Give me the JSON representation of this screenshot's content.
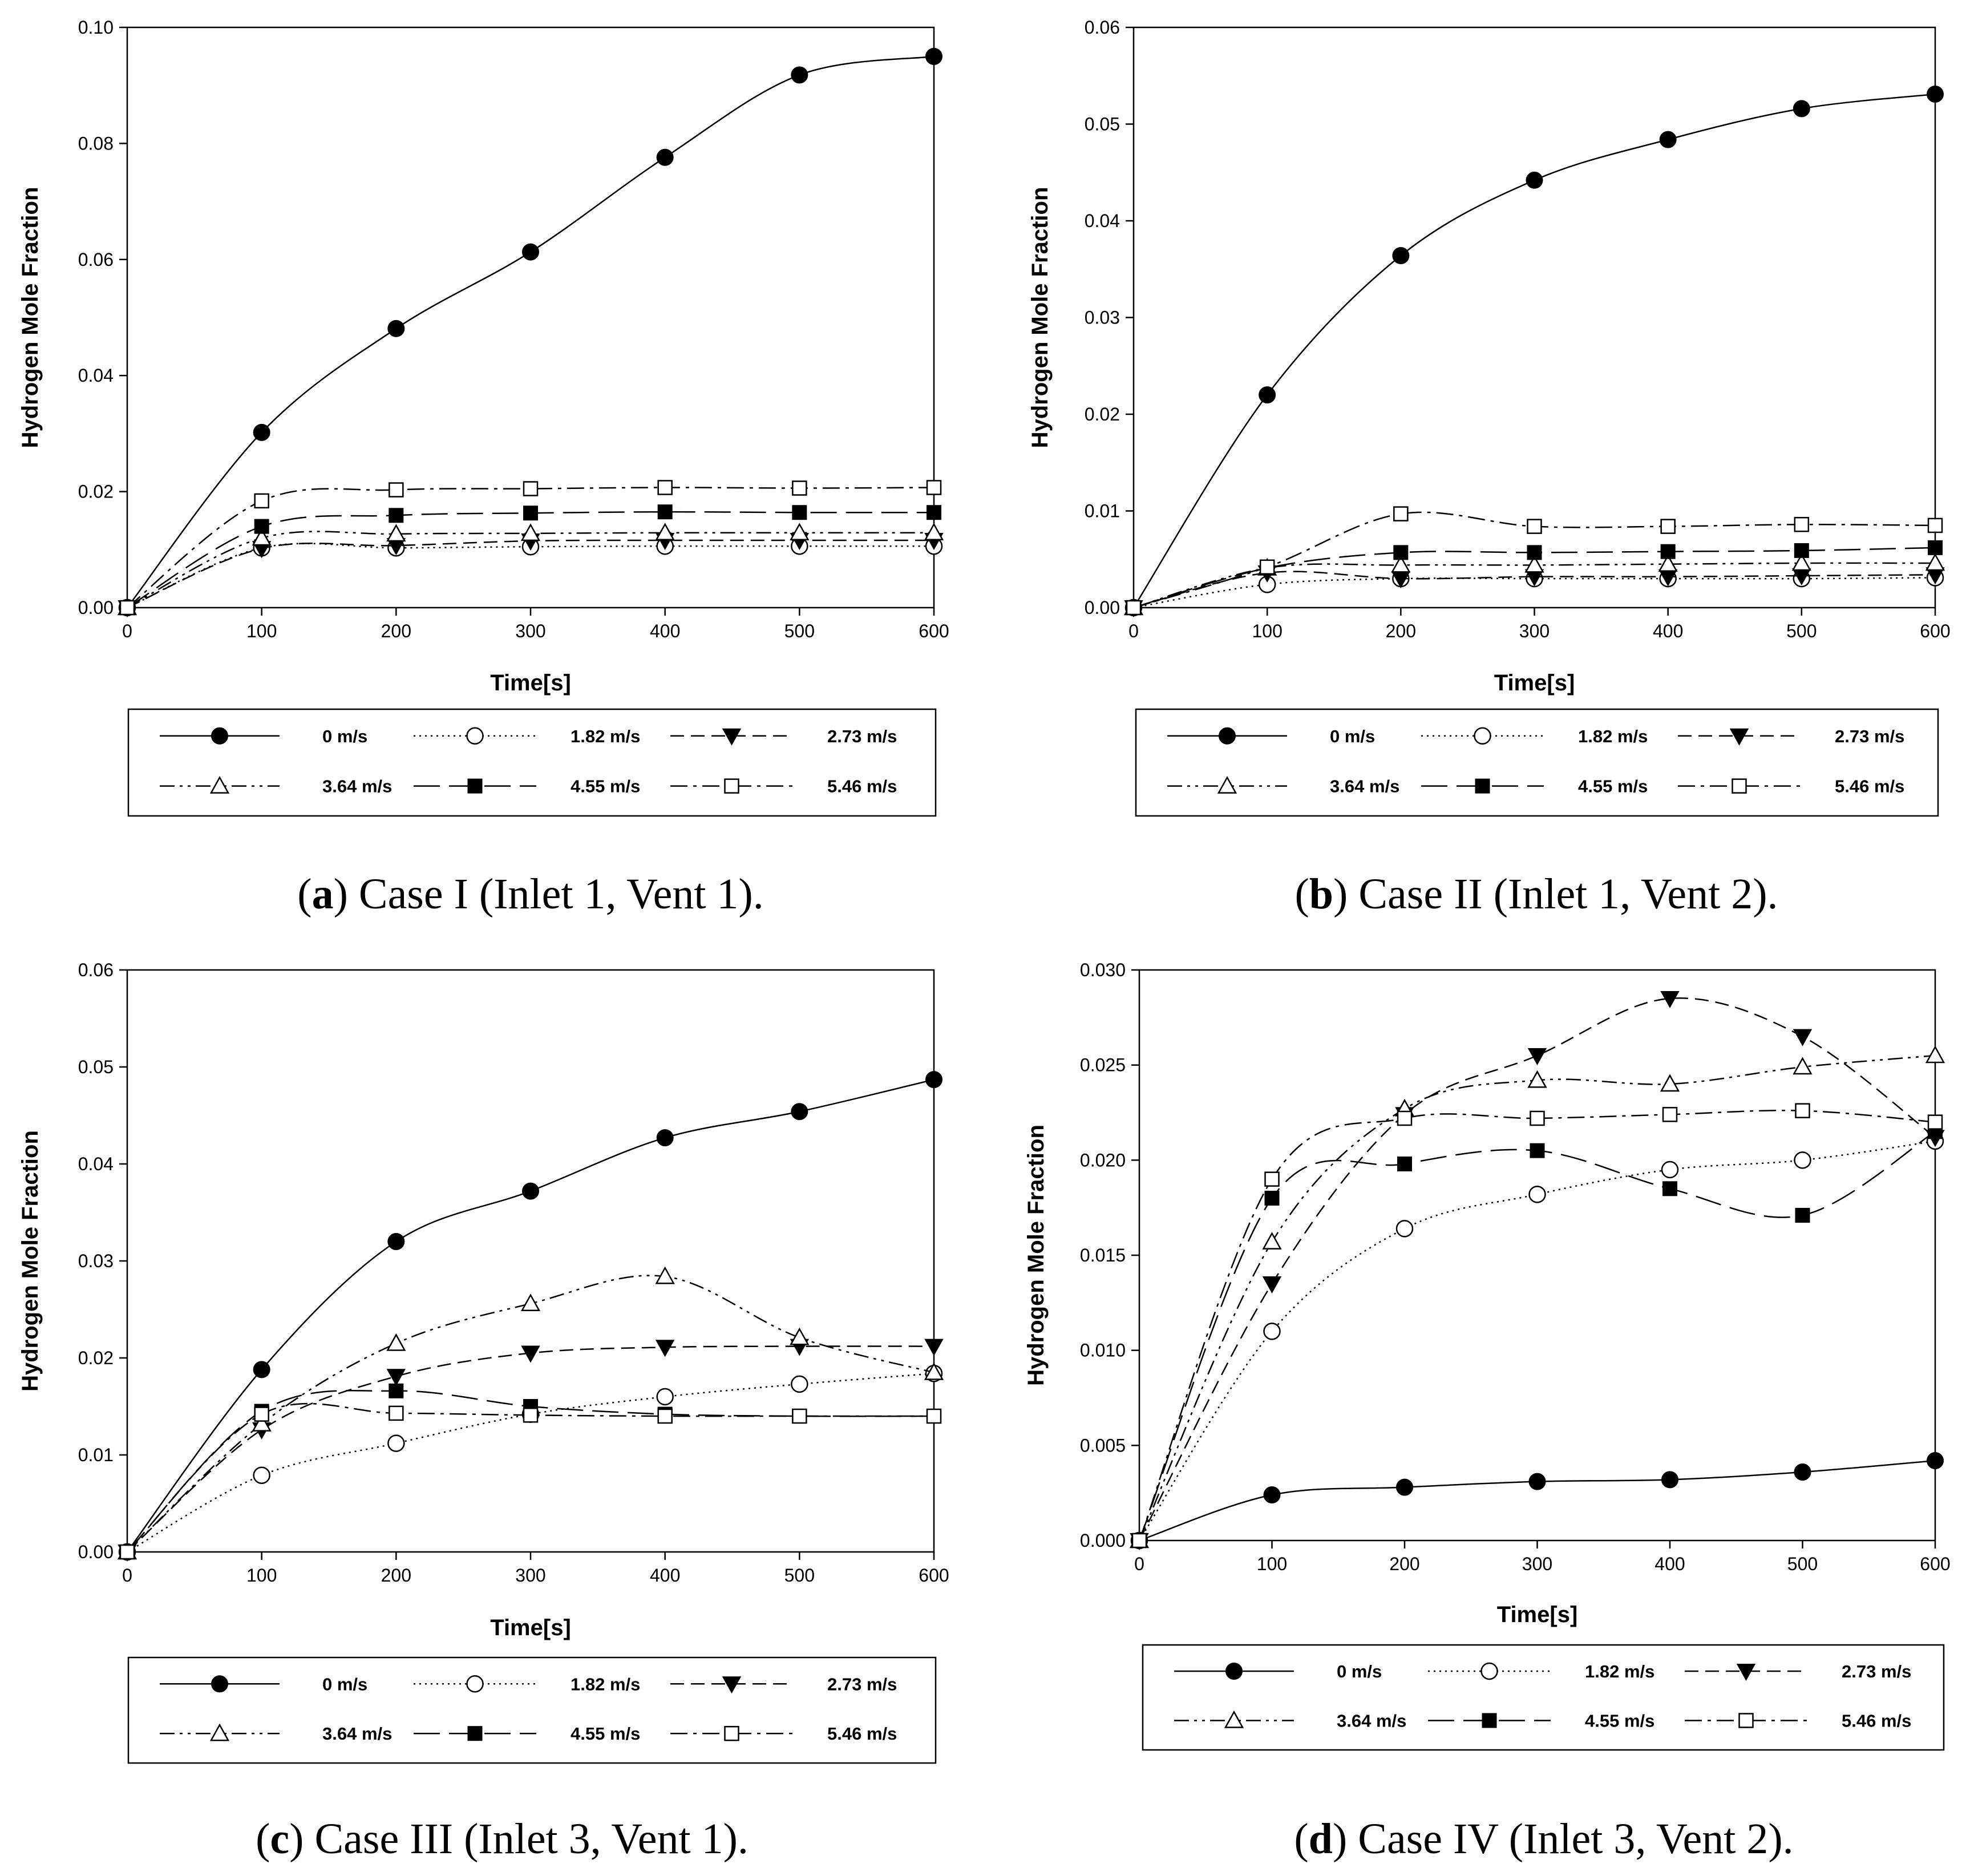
{
  "figure": {
    "colors": {
      "line": "#000000",
      "background": "#ffffff"
    }
  },
  "chart_data": [
    {
      "type": "line",
      "caption": {
        "letter": "a",
        "text": "Case I (Inlet 1, Vent 1)."
      },
      "xlabel": "Time[s]",
      "ylabel": "Hydrogen Mole Fraction",
      "xlim": [
        0,
        600
      ],
      "ylim": [
        0,
        0.1
      ],
      "x_ticks": [
        0,
        100,
        200,
        300,
        400,
        500,
        600
      ],
      "x_tick_labels": [
        "0",
        "100",
        "200",
        "300",
        "400",
        "500",
        "600"
      ],
      "y_ticks": [
        0,
        0.02,
        0.04,
        0.06,
        0.08,
        0.1
      ],
      "y_tick_labels": [
        "0.00",
        "0.02",
        "0.04",
        "0.06",
        "0.08",
        "0.10"
      ],
      "x": [
        0,
        100,
        200,
        300,
        400,
        500,
        600
      ],
      "series": [
        {
          "name": "0 m/s",
          "marker": "filled-circle",
          "dash": "solid",
          "values": [
            0,
            0.0302,
            0.0481,
            0.0613,
            0.0776,
            0.0918,
            0.095
          ]
        },
        {
          "name": "1.82 m/s",
          "marker": "open-circle",
          "dash": "dotted",
          "values": [
            0,
            0.0103,
            0.0103,
            0.0105,
            0.0106,
            0.0106,
            0.0106
          ]
        },
        {
          "name": "2.73 m/s",
          "marker": "filled-triangle-down",
          "dash": "dashed",
          "values": [
            0,
            0.0102,
            0.0107,
            0.0115,
            0.0116,
            0.0116,
            0.0116
          ]
        },
        {
          "name": "3.64 m/s",
          "marker": "open-triangle-up",
          "dash": "dash-dot-dot",
          "values": [
            0,
            0.012,
            0.0127,
            0.0128,
            0.0129,
            0.0129,
            0.0129
          ]
        },
        {
          "name": "4.55 m/s",
          "marker": "filled-square",
          "dash": "long-dash",
          "values": [
            0,
            0.014,
            0.0159,
            0.0163,
            0.0165,
            0.0164,
            0.0164
          ]
        },
        {
          "name": "5.46 m/s",
          "marker": "open-square",
          "dash": "dash-dot",
          "values": [
            0,
            0.0184,
            0.0203,
            0.0205,
            0.0207,
            0.0206,
            0.0207
          ]
        }
      ]
    },
    {
      "type": "line",
      "caption": {
        "letter": "b",
        "text": "Case II (Inlet 1, Vent 2)."
      },
      "xlabel": "Time[s]",
      "ylabel": "Hydrogen Mole Fraction",
      "xlim": [
        0,
        600
      ],
      "ylim": [
        0,
        0.06
      ],
      "x_ticks": [
        0,
        100,
        200,
        300,
        400,
        500,
        600
      ],
      "x_tick_labels": [
        "0",
        "100",
        "200",
        "300",
        "400",
        "500",
        "600"
      ],
      "y_ticks": [
        0,
        0.01,
        0.02,
        0.03,
        0.04,
        0.05,
        0.06
      ],
      "y_tick_labels": [
        "0.00",
        "0.01",
        "0.02",
        "0.03",
        "0.04",
        "0.05",
        "0.06"
      ],
      "x": [
        0,
        100,
        200,
        300,
        400,
        500,
        600
      ],
      "series": [
        {
          "name": "0 m/s",
          "marker": "filled-circle",
          "dash": "solid",
          "values": [
            0,
            0.022,
            0.0364,
            0.0442,
            0.0484,
            0.0516,
            0.0531
          ]
        },
        {
          "name": "1.82 m/s",
          "marker": "open-circle",
          "dash": "dotted",
          "values": [
            0,
            0.0024,
            0.003,
            0.003,
            0.003,
            0.003,
            0.0031
          ]
        },
        {
          "name": "2.73 m/s",
          "marker": "filled-triangle-down",
          "dash": "dashed",
          "values": [
            0,
            0.0036,
            0.003,
            0.0032,
            0.0032,
            0.0033,
            0.0034
          ]
        },
        {
          "name": "3.64 m/s",
          "marker": "open-triangle-up",
          "dash": "dash-dot-dot",
          "values": [
            0,
            0.0041,
            0.0044,
            0.0044,
            0.0045,
            0.0046,
            0.0046
          ]
        },
        {
          "name": "4.55 m/s",
          "marker": "filled-square",
          "dash": "long-dash",
          "values": [
            0,
            0.0041,
            0.0057,
            0.0057,
            0.0058,
            0.0059,
            0.0062
          ]
        },
        {
          "name": "5.46 m/s",
          "marker": "open-square",
          "dash": "dash-dot",
          "values": [
            0,
            0.0042,
            0.0097,
            0.0084,
            0.0084,
            0.0086,
            0.0085
          ]
        }
      ]
    },
    {
      "type": "line",
      "caption": {
        "letter": "c",
        "text": "Case III (Inlet 3, Vent 1)."
      },
      "xlabel": "Time[s]",
      "ylabel": "Hydrogen Mole Fraction",
      "xlim": [
        0,
        600
      ],
      "ylim": [
        0,
        0.06
      ],
      "x_ticks": [
        0,
        100,
        200,
        300,
        400,
        500,
        600
      ],
      "x_tick_labels": [
        "0",
        "100",
        "200",
        "300",
        "400",
        "500",
        "600"
      ],
      "y_ticks": [
        0,
        0.01,
        0.02,
        0.03,
        0.04,
        0.05,
        0.06
      ],
      "y_tick_labels": [
        "0.00",
        "0.01",
        "0.02",
        "0.03",
        "0.04",
        "0.05",
        "0.06"
      ],
      "x": [
        0,
        100,
        200,
        300,
        400,
        500,
        600
      ],
      "series": [
        {
          "name": "0 m/s",
          "marker": "filled-circle",
          "dash": "solid",
          "values": [
            0,
            0.0188,
            0.032,
            0.0372,
            0.0427,
            0.0454,
            0.0487
          ]
        },
        {
          "name": "1.82 m/s",
          "marker": "open-circle",
          "dash": "dotted",
          "values": [
            0,
            0.0079,
            0.0112,
            0.0142,
            0.016,
            0.0173,
            0.0184
          ]
        },
        {
          "name": "2.73 m/s",
          "marker": "filled-triangle-down",
          "dash": "dashed",
          "values": [
            0,
            0.0126,
            0.0181,
            0.0205,
            0.0211,
            0.0212,
            0.0212
          ]
        },
        {
          "name": "3.64 m/s",
          "marker": "open-triangle-up",
          "dash": "dash-dot-dot",
          "values": [
            0,
            0.0132,
            0.0215,
            0.0256,
            0.0284,
            0.0221,
            0.0185
          ]
        },
        {
          "name": "4.55 m/s",
          "marker": "filled-square",
          "dash": "long-dash",
          "values": [
            0,
            0.0145,
            0.0166,
            0.015,
            0.0142,
            0.014,
            0.014
          ]
        },
        {
          "name": "5.46 m/s",
          "marker": "open-square",
          "dash": "dash-dot",
          "values": [
            0,
            0.0142,
            0.0143,
            0.0141,
            0.014,
            0.014,
            0.014
          ]
        }
      ]
    },
    {
      "type": "line",
      "caption": {
        "letter": "d",
        "text": "Case IV (Inlet 3, Vent 2)."
      },
      "xlabel": "Time[s]",
      "ylabel": "Hydrogen Mole Fraction",
      "xlim": [
        0,
        600
      ],
      "ylim": [
        0,
        0.03
      ],
      "x_ticks": [
        0,
        100,
        200,
        300,
        400,
        500,
        600
      ],
      "x_tick_labels": [
        "0",
        "100",
        "200",
        "300",
        "400",
        "500",
        "600"
      ],
      "y_ticks": [
        0,
        0.005,
        0.01,
        0.015,
        0.02,
        0.025,
        0.03
      ],
      "y_tick_labels": [
        "0.000",
        "0.005",
        "0.010",
        "0.015",
        "0.020",
        "0.025",
        "0.030"
      ],
      "x": [
        0,
        100,
        200,
        300,
        400,
        500,
        600
      ],
      "series": [
        {
          "name": "0 m/s",
          "marker": "filled-circle",
          "dash": "solid",
          "values": [
            0,
            0.0024,
            0.0028,
            0.0031,
            0.0032,
            0.0036,
            0.0042
          ]
        },
        {
          "name": "1.82 m/s",
          "marker": "open-circle",
          "dash": "dotted",
          "values": [
            0,
            0.011,
            0.0164,
            0.0182,
            0.0195,
            0.02,
            0.021
          ]
        },
        {
          "name": "2.73 m/s",
          "marker": "filled-triangle-down",
          "dash": "dashed",
          "values": [
            0,
            0.0135,
            0.0224,
            0.0255,
            0.0285,
            0.0265,
            0.0212
          ]
        },
        {
          "name": "3.64 m/s",
          "marker": "open-triangle-up",
          "dash": "dash-dot-dot",
          "values": [
            0,
            0.0157,
            0.0227,
            0.0242,
            0.024,
            0.0249,
            0.0255
          ]
        },
        {
          "name": "4.55 m/s",
          "marker": "filled-square",
          "dash": "long-dash",
          "values": [
            0,
            0.018,
            0.0198,
            0.0205,
            0.0185,
            0.0171,
            0.0215
          ]
        },
        {
          "name": "5.46 m/s",
          "marker": "open-square",
          "dash": "dash-dot",
          "values": [
            0,
            0.019,
            0.0222,
            0.0222,
            0.0224,
            0.0226,
            0.022
          ]
        }
      ]
    }
  ]
}
